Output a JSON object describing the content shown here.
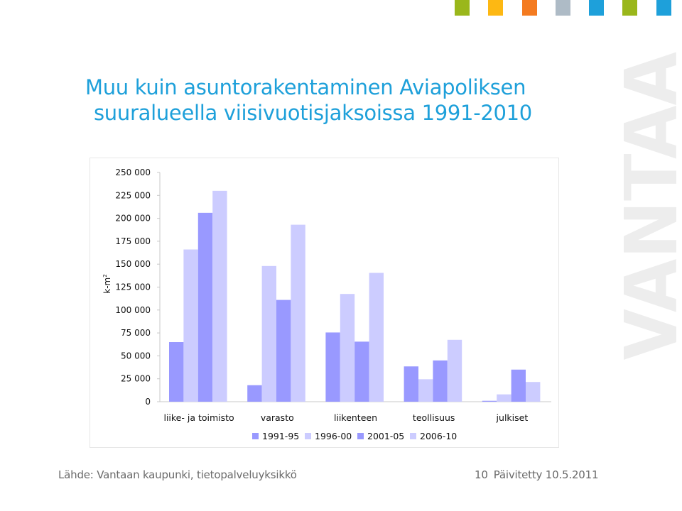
{
  "title_line1": "Muu kuin asuntorakentaminen Aviapoliksen",
  "title_line2": "suuralueella viisivuotisjaksoissa 1991-2010",
  "watermark_text": "VANTAA",
  "footer": {
    "source": "Lähde: Vantaan kaupunki, tietopalveluyksikkö",
    "page_number": "10",
    "updated": "Päivitetty 10.5.2011"
  },
  "colors": {
    "title": "#1ea0da",
    "footer_text": "#6a6a6a",
    "watermark": "#ededed",
    "series_dark": "#9999ff",
    "series_light": "#ccccff"
  },
  "top_squares": [
    "#9ab71b",
    "#fdb813",
    "#f47b20",
    "#aebbc6",
    "#1ea0da",
    "#9ab71b",
    "#1ea0da"
  ],
  "chart_data": {
    "type": "bar",
    "title": "",
    "ylabel": "k-m",
    "ylabel_sup": "2",
    "xlabel": "",
    "ylim": [
      0,
      250000
    ],
    "y_ticks": [
      0,
      25000,
      50000,
      75000,
      100000,
      125000,
      150000,
      175000,
      200000,
      225000,
      250000
    ],
    "y_tick_labels": [
      "0",
      "25 000",
      "50 000",
      "75 000",
      "100 000",
      "125 000",
      "150 000",
      "175 000",
      "200 000",
      "225 000",
      "250 000"
    ],
    "categories": [
      "liike- ja toimisto",
      "varasto",
      "liikenteen",
      "teollisuus",
      "julkiset"
    ],
    "series": [
      {
        "name": "1991-95",
        "color": "#9999ff",
        "values": [
          65000,
          18000,
          75500,
          38500,
          1000
        ]
      },
      {
        "name": "1996-00",
        "color": "#ccccff",
        "values": [
          166000,
          148000,
          117500,
          24500,
          8000
        ]
      },
      {
        "name": "2001-05",
        "color": "#9999ff",
        "values": [
          206000,
          111000,
          65500,
          45000,
          35000
        ]
      },
      {
        "name": "2006-10",
        "color": "#ccccff",
        "values": [
          230000,
          193000,
          140500,
          67500,
          21500
        ]
      }
    ],
    "legend_position": "bottom",
    "grid": false
  }
}
